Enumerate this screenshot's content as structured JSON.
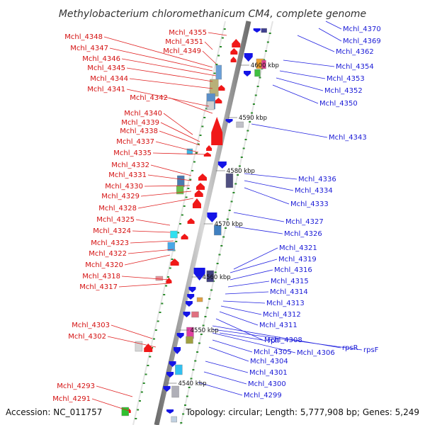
{
  "title": "Methylobacterium chloromethanicum CM4, complete genome",
  "footer": {
    "accession": "Accession: NC_011757",
    "topology": "Topology: circular; Length: 5,777,908 bp; Genes: 5,249"
  },
  "ticks": [
    {
      "label": "4600 kbp",
      "pos": 4600
    },
    {
      "label": "4590 kbp",
      "pos": 4590
    },
    {
      "label": "4580 kbp",
      "pos": 4580
    },
    {
      "label": "4570 kbp",
      "pos": 4570
    },
    {
      "label": "4560 kbp",
      "pos": 4560
    },
    {
      "label": "4550 kbp",
      "pos": 4550
    },
    {
      "label": "4540 kbp",
      "pos": 4540
    }
  ],
  "left_genes": [
    "Mchl_4355",
    "Mchl_4351",
    "Mchl_4349",
    "Mchl_4348",
    "Mchl_4347",
    "Mchl_4346",
    "Mchl_4345",
    "Mchl_4344",
    "Mchl_4341",
    "Mchl_4342",
    "Mchl_4340",
    "Mchl_4339",
    "Mchl_4338",
    "Mchl_4337",
    "Mchl_4335",
    "Mchl_4332",
    "Mchl_4331",
    "Mchl_4330",
    "Mchl_4329",
    "Mchl_4328",
    "Mchl_4325",
    "Mchl_4324",
    "Mchl_4323",
    "Mchl_4322",
    "Mchl_4320",
    "Mchl_4318",
    "Mchl_4317",
    "Mchl_4303",
    "Mchl_4302",
    "Mchl_4293",
    "Mchl_4291"
  ],
  "right_genes": [
    "Mchl_4370",
    "Mchl_4369",
    "Mchl_4362",
    "Mchl_4354",
    "Mchl_4353",
    "Mchl_4352",
    "Mchl_4350",
    "Mchl_4343",
    "Mchl_4336",
    "Mchl_4334",
    "Mchl_4333",
    "Mchl_4327",
    "Mchl_4326",
    "Mchl_4321",
    "Mchl_4319",
    "Mchl_4316",
    "Mchl_4315",
    "Mchl_4314",
    "Mchl_4313",
    "Mchl_4312",
    "Mchl_4311",
    "Mchl_4308",
    "rplI",
    "rpsR",
    "rpsF",
    "Mchl_4305",
    "Mchl_4306",
    "Mchl_4304",
    "Mchl_4301",
    "Mchl_4300",
    "Mchl_4299"
  ],
  "colors": {
    "left_label": "#d41010",
    "right_label": "#1a1ad6",
    "backbone": "#8c8c8c",
    "forward_gene": "#f01818",
    "reverse_gene": "#1414e6",
    "tick_dot": "#2a8a2a"
  }
}
